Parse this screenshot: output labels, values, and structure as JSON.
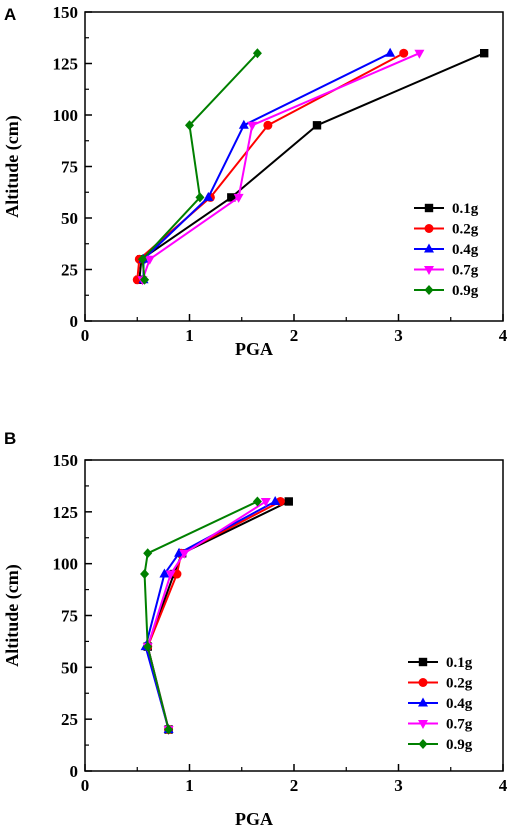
{
  "chart_data": [
    {
      "panel": "A",
      "type": "line",
      "xlabel": "PGA",
      "ylabel": "Altitude (cm)",
      "xlim": [
        0,
        4
      ],
      "ylim": [
        0,
        150
      ],
      "xticks": [
        0,
        1,
        2,
        3,
        4
      ],
      "yticks": [
        0,
        25,
        50,
        75,
        100,
        125,
        150
      ],
      "grid": false,
      "legend_position": "lower-right",
      "series": [
        {
          "name": "0.1g",
          "color": "#000000",
          "marker": "square",
          "points": [
            [
              0.52,
              20
            ],
            [
              0.54,
              30
            ],
            [
              1.4,
              60
            ],
            [
              2.22,
              95
            ],
            [
              3.82,
              130
            ]
          ]
        },
        {
          "name": "0.2g",
          "color": "#ff0000",
          "marker": "circle",
          "points": [
            [
              0.5,
              20
            ],
            [
              0.52,
              30
            ],
            [
              1.2,
              60
            ],
            [
              1.75,
              95
            ],
            [
              3.05,
              130
            ]
          ]
        },
        {
          "name": "0.4g",
          "color": "#0000ff",
          "marker": "triangle-up",
          "points": [
            [
              0.56,
              20
            ],
            [
              0.56,
              30
            ],
            [
              1.18,
              60
            ],
            [
              1.52,
              95
            ],
            [
              2.92,
              130
            ]
          ]
        },
        {
          "name": "0.7g",
          "color": "#ff00ff",
          "marker": "triangle-down",
          "points": [
            [
              0.55,
              20
            ],
            [
              0.62,
              30
            ],
            [
              1.47,
              60
            ],
            [
              1.6,
              95
            ],
            [
              3.2,
              130
            ]
          ]
        },
        {
          "name": "0.9g",
          "color": "#008000",
          "marker": "diamond",
          "points": [
            [
              0.57,
              20
            ],
            [
              0.55,
              30
            ],
            [
              1.1,
              60
            ],
            [
              1.0,
              95
            ],
            [
              1.65,
              130
            ]
          ]
        }
      ]
    },
    {
      "panel": "B",
      "type": "line",
      "xlabel": "PGA",
      "ylabel": "Altitude (cm)",
      "xlim": [
        0,
        4
      ],
      "ylim": [
        0,
        150
      ],
      "xticks": [
        0,
        1,
        2,
        3,
        4
      ],
      "yticks": [
        0,
        25,
        50,
        75,
        100,
        125,
        150
      ],
      "grid": false,
      "legend_position": "lower-right",
      "series": [
        {
          "name": "0.1g",
          "color": "#000000",
          "marker": "square",
          "points": [
            [
              0.8,
              20
            ],
            [
              0.6,
              60
            ],
            [
              0.85,
              95
            ],
            [
              0.93,
              105
            ],
            [
              1.95,
              130
            ]
          ]
        },
        {
          "name": "0.2g",
          "color": "#ff0000",
          "marker": "circle",
          "points": [
            [
              0.8,
              20
            ],
            [
              0.6,
              60
            ],
            [
              0.88,
              95
            ],
            [
              0.92,
              105
            ],
            [
              1.87,
              130
            ]
          ]
        },
        {
          "name": "0.4g",
          "color": "#0000ff",
          "marker": "triangle-up",
          "points": [
            [
              0.8,
              20
            ],
            [
              0.58,
              60
            ],
            [
              0.76,
              95
            ],
            [
              0.9,
              105
            ],
            [
              1.82,
              130
            ]
          ]
        },
        {
          "name": "0.7g",
          "color": "#ff00ff",
          "marker": "triangle-down",
          "points": [
            [
              0.8,
              20
            ],
            [
              0.6,
              60
            ],
            [
              0.82,
              95
            ],
            [
              0.95,
              105
            ],
            [
              1.73,
              130
            ]
          ]
        },
        {
          "name": "0.9g",
          "color": "#008000",
          "marker": "diamond",
          "points": [
            [
              0.8,
              20
            ],
            [
              0.6,
              60
            ],
            [
              0.57,
              95
            ],
            [
              0.6,
              105
            ],
            [
              1.65,
              130
            ]
          ]
        }
      ]
    }
  ]
}
